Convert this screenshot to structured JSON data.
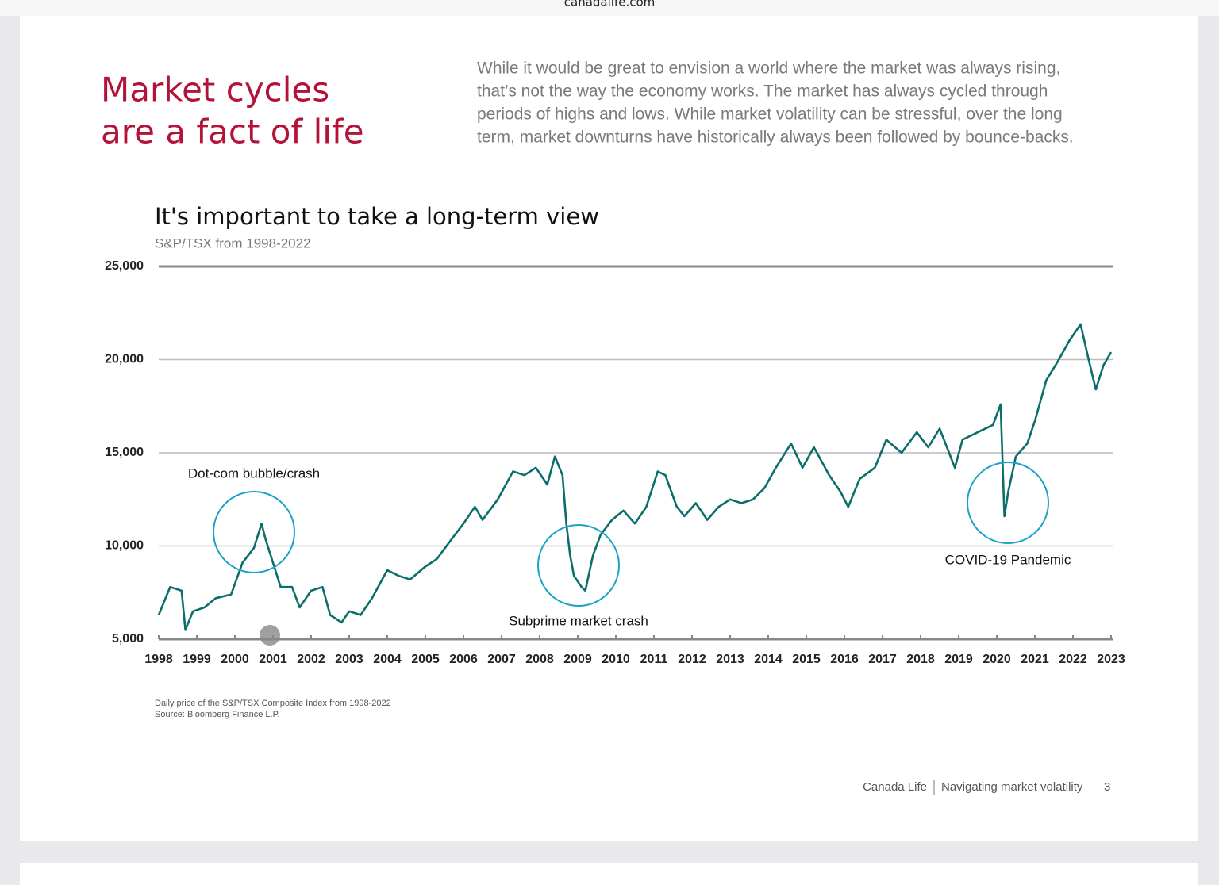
{
  "browser": {
    "url": "canadalife.com"
  },
  "page": {
    "heading": [
      "Market cycles",
      "are a fact of life"
    ],
    "intro": [
      "While it would be great to envision a world where the market was always rising,",
      "that’s not the way the economy works. The market has always cycled through",
      "periods of highs and lows. While market volatility can be stressful, over the long",
      "term, market downturns have historically always been followed by bounce-backs."
    ],
    "notes": [
      "Daily price of the S&P/TSX Composite Index from 1998-2022",
      "Source: Bloomberg Finance L.P."
    ],
    "footer": {
      "brand": "Canada Life",
      "section": "Navigating market volatility",
      "page_number": 3
    }
  },
  "chart_data": {
    "type": "line",
    "title": "It's important to take a long-term view",
    "subtitle": "S&P/TSX from 1998-2022",
    "annotations": [
      "Dot-com bubble/crash",
      "Subprime market crash",
      "COVID-19 Pandemic"
    ],
    "x": [
      1998.0,
      1998.3,
      1998.6,
      1998.7,
      1998.9,
      1999.2,
      1999.5,
      1999.9,
      2000.2,
      2000.5,
      2000.7,
      2000.8,
      2001.0,
      2001.2,
      2001.5,
      2001.7,
      2002.0,
      2002.3,
      2002.5,
      2002.8,
      2003.0,
      2003.3,
      2003.6,
      2004.0,
      2004.3,
      2004.6,
      2005.0,
      2005.3,
      2005.7,
      2006.0,
      2006.3,
      2006.5,
      2006.9,
      2007.3,
      2007.6,
      2007.9,
      2008.2,
      2008.4,
      2008.6,
      2008.7,
      2008.8,
      2008.9,
      2009.1,
      2009.2,
      2009.4,
      2009.6,
      2009.9,
      2010.2,
      2010.5,
      2010.8,
      2011.1,
      2011.3,
      2011.6,
      2011.8,
      2012.1,
      2012.4,
      2012.7,
      2013.0,
      2013.3,
      2013.6,
      2013.9,
      2014.2,
      2014.6,
      2014.9,
      2015.2,
      2015.6,
      2015.9,
      2016.1,
      2016.4,
      2016.8,
      2017.1,
      2017.5,
      2017.9,
      2018.2,
      2018.5,
      2018.9,
      2019.1,
      2019.5,
      2019.9,
      2020.1,
      2020.2,
      2020.3,
      2020.5,
      2020.8,
      2021.0,
      2021.3,
      2021.6,
      2021.9,
      2022.2,
      2022.4,
      2022.6,
      2022.8,
      2023.0
    ],
    "series": [
      {
        "color": "#0b6e6a",
        "values": [
          6300,
          7800,
          7600,
          5500,
          6500,
          6700,
          7200,
          7400,
          9100,
          9900,
          11200,
          10400,
          9100,
          7800,
          7800,
          6700,
          7600,
          7800,
          6300,
          5900,
          6500,
          6300,
          7200,
          8700,
          8400,
          8200,
          8900,
          9300,
          10400,
          11200,
          12100,
          11400,
          12500,
          14000,
          13800,
          14200,
          13300,
          14800,
          13800,
          11200,
          9500,
          8400,
          7800,
          7600,
          9500,
          10600,
          11400,
          11900,
          11200,
          12100,
          14000,
          13800,
          12100,
          11600,
          12300,
          11400,
          12100,
          12500,
          12300,
          12500,
          13100,
          14200,
          15500,
          14200,
          15300,
          13800,
          12900,
          12100,
          13600,
          14200,
          15700,
          15000,
          16100,
          15300,
          16300,
          14200,
          15700,
          16100,
          16500,
          17600,
          11600,
          12900,
          14800,
          15500,
          16700,
          18900,
          19900,
          21000,
          21900,
          20100,
          18400,
          19700,
          20400
        ]
      }
    ],
    "xlim": [
      1998,
      2023
    ],
    "xticks": [
      1998,
      1999,
      2000,
      2001,
      2002,
      2003,
      2004,
      2005,
      2006,
      2007,
      2008,
      2009,
      2010,
      2011,
      2012,
      2013,
      2014,
      2015,
      2016,
      2017,
      2018,
      2019,
      2020,
      2021,
      2022,
      2023
    ],
    "ylim": [
      5000,
      25000
    ],
    "yticks": [
      {
        "value": 5000,
        "label": "5,000"
      },
      {
        "value": 10000,
        "label": "10,000"
      },
      {
        "value": 15000,
        "label": "15,000"
      },
      {
        "value": 20000,
        "label": "20,000"
      },
      {
        "value": 25000,
        "label": "25,000"
      }
    ],
    "grid": true
  }
}
